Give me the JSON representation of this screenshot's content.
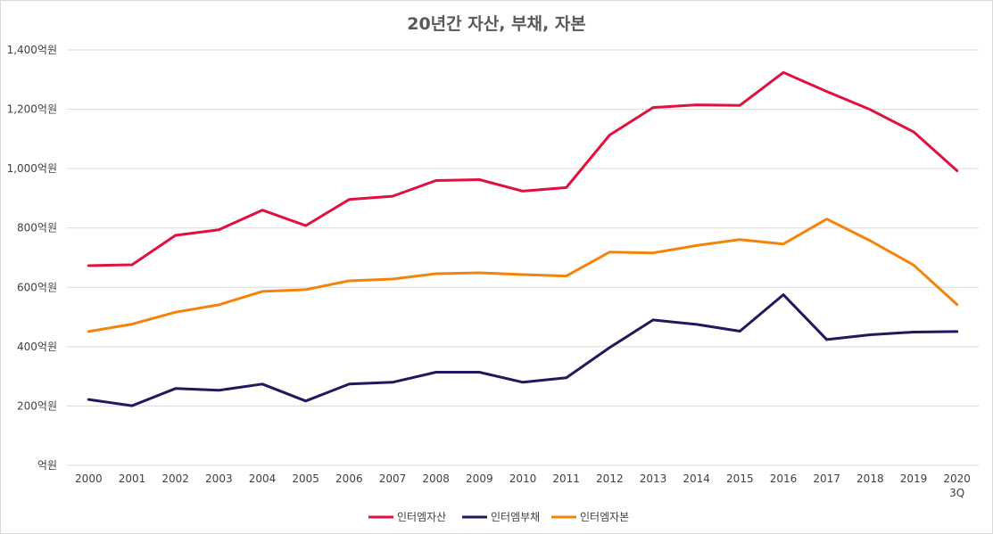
{
  "chart_data": {
    "type": "line",
    "title": "20년간 자산, 부채, 자본",
    "xlabel": "",
    "ylabel": "",
    "categories": [
      "2000",
      "2001",
      "2002",
      "2003",
      "2004",
      "2005",
      "2006",
      "2007",
      "2008",
      "2009",
      "2010",
      "2011",
      "2012",
      "2013",
      "2014",
      "2015",
      "2016",
      "2017",
      "2018",
      "2019",
      "2020\n3Q"
    ],
    "y_ticks": [
      {
        "value": 0,
        "label": "억원"
      },
      {
        "value": 200,
        "label": "200억원"
      },
      {
        "value": 400,
        "label": "400억원"
      },
      {
        "value": 600,
        "label": "600억원"
      },
      {
        "value": 800,
        "label": "800억원"
      },
      {
        "value": 1000,
        "label": "1,000억원"
      },
      {
        "value": 1200,
        "label": "1,200억원"
      },
      {
        "value": 1400,
        "label": "1,400억원"
      }
    ],
    "ylim": [
      0,
      1400
    ],
    "grid": true,
    "legend_position": "bottom",
    "series": [
      {
        "name": "인터엠자산",
        "color": "#e0103f",
        "values": [
          673,
          676,
          775,
          794,
          860,
          808,
          896,
          907,
          960,
          963,
          924,
          936,
          1113,
          1206,
          1215,
          1213,
          1324,
          1260,
          1199,
          1124,
          993
        ]
      },
      {
        "name": "인터엠부채",
        "color": "#1f1a5e",
        "values": [
          222,
          201,
          259,
          253,
          274,
          217,
          274,
          280,
          314,
          314,
          280,
          295,
          397,
          490,
          475,
          452,
          575,
          424,
          440,
          449,
          451
        ]
      },
      {
        "name": "인터엠자본",
        "color": "#f5820a",
        "values": [
          451,
          476,
          516,
          541,
          586,
          592,
          622,
          628,
          646,
          649,
          643,
          638,
          719,
          716,
          741,
          761,
          746,
          830,
          757,
          675,
          542
        ]
      }
    ]
  }
}
